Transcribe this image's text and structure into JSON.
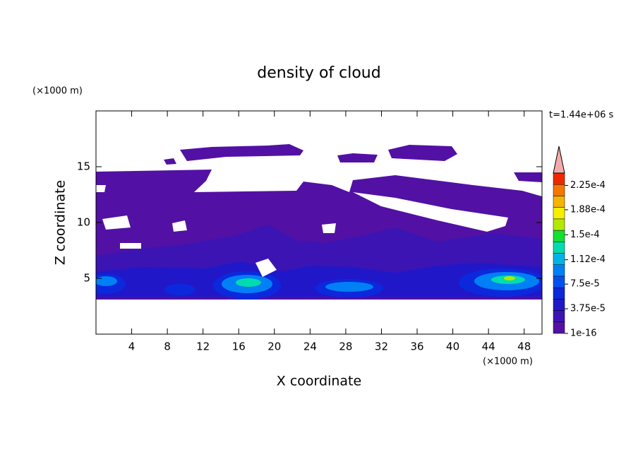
{
  "chart_data": {
    "type": "contour",
    "title": "density of cloud",
    "x_label": "X coordinate",
    "y_label": "Z coordinate",
    "x_unit": "(×1000 m)",
    "y_unit": "(×1000 m)",
    "annotation": "t=1.44e+06 s",
    "xlim": [
      0,
      50
    ],
    "xticks": [
      4,
      8,
      12,
      16,
      20,
      24,
      28,
      32,
      36,
      40,
      44,
      48
    ],
    "ylim": [
      0,
      20
    ],
    "yticks": [
      5,
      10,
      15
    ],
    "colorbar": {
      "lim": [
        1e-16,
        0.00024375
      ],
      "ticks": [
        1e-16,
        {
          "value": 3.75e-05,
          "label": "3.75e-5"
        },
        {
          "value": 7.5e-05,
          "label": "7.5e-5"
        },
        {
          "value": 0.000112,
          "label": "1.12e-4"
        },
        {
          "value": 0.00015,
          "label": "1.5e-4"
        },
        {
          "value": 0.000188,
          "label": "1.88e-4"
        },
        {
          "value": 0.000225,
          "label": "2.25e-4"
        }
      ],
      "colors": [
        "#5211a4",
        "#3c14b4",
        "#2018c8",
        "#0c28dc",
        "#0050f0",
        "#0080f4",
        "#00b4e8",
        "#00dcb0",
        "#10e030",
        "#b4e800",
        "#f4f000",
        "#f4b400",
        "#f47800",
        "#f02800"
      ],
      "extend_color": "#f4aaaa"
    }
  }
}
